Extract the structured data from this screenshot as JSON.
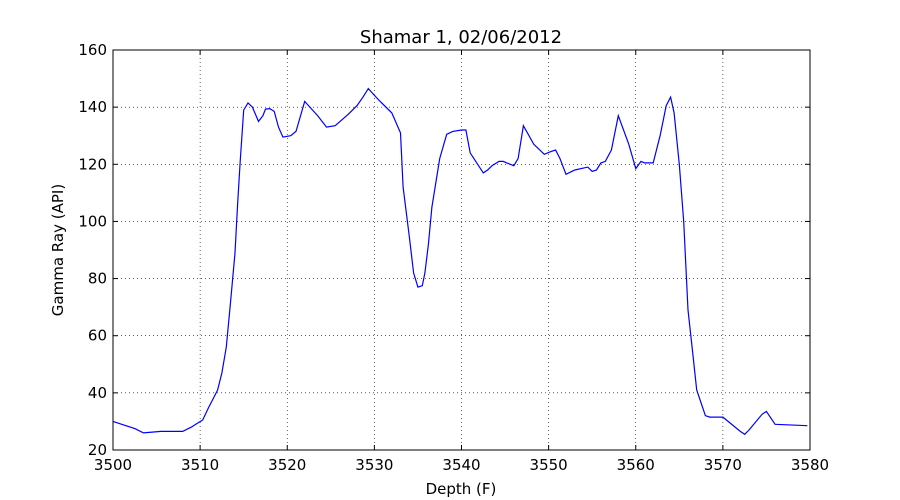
{
  "chart_data": {
    "type": "line",
    "title": "Shamar 1, 02/06/2012",
    "xlabel": "Depth (F)",
    "ylabel": "Gamma Ray (API)",
    "xlim": [
      3500,
      3580
    ],
    "ylim": [
      20,
      160
    ],
    "xticks": [
      3500,
      3510,
      3520,
      3530,
      3540,
      3550,
      3560,
      3570,
      3580
    ],
    "yticks": [
      20,
      40,
      60,
      80,
      100,
      120,
      140,
      160
    ],
    "grid": true,
    "grid_style": "dotted",
    "legend": "none",
    "series": [
      {
        "color": "#0000ff",
        "x": [
          3500,
          3502.5,
          3503.5,
          3505.5,
          3508,
          3509,
          3509.5,
          3510.3,
          3511,
          3511.5,
          3512,
          3512.5,
          3513,
          3513.5,
          3514,
          3514.3,
          3514.6,
          3515,
          3515.5,
          3516,
          3516.7,
          3517.2,
          3517.5,
          3518,
          3518.5,
          3519,
          3519.5,
          3520.4,
          3521,
          3522,
          3523.5,
          3524.5,
          3525.5,
          3527,
          3528,
          3528.7,
          3529.3,
          3530.5,
          3532,
          3533,
          3533.3,
          3534,
          3534.5,
          3535,
          3535.5,
          3535.8,
          3536.2,
          3536.6,
          3537.5,
          3538.3,
          3539,
          3540,
          3540.5,
          3541,
          3542.5,
          3543,
          3543.5,
          3544.3,
          3544.8,
          3545.2,
          3546,
          3546.5,
          3547.1,
          3548.3,
          3549.5,
          3550.3,
          3550.8,
          3551.3,
          3552,
          3553,
          3554.5,
          3555,
          3555.5,
          3556,
          3556.5,
          3557.2,
          3558,
          3559.2,
          3560,
          3560.6,
          3561,
          3562,
          3562.8,
          3563.5,
          3564,
          3564.4,
          3565,
          3565.5,
          3566,
          3566.5,
          3567,
          3568,
          3568.5,
          3570,
          3572,
          3572.5,
          3573,
          3574.5,
          3575,
          3576,
          3579.7
        ],
        "y": [
          30,
          27.5,
          26,
          26.5,
          26.5,
          28,
          29,
          30.5,
          35,
          38,
          41,
          47,
          56,
          72,
          89,
          106,
          121,
          139,
          141.5,
          140,
          135,
          137,
          139.3,
          139.5,
          138.5,
          133,
          129.5,
          130,
          131.5,
          142,
          137,
          133,
          133.5,
          137.5,
          140.5,
          143.5,
          146.5,
          142.5,
          138,
          131,
          112,
          95,
          82,
          77,
          77.5,
          82,
          92,
          105,
          122,
          130.5,
          131.5,
          132,
          132,
          124,
          117,
          118,
          119.5,
          121,
          121,
          120.5,
          119.5,
          122,
          133.5,
          127,
          123.5,
          124.5,
          125,
          122,
          116.5,
          118,
          119,
          117.5,
          118,
          120.5,
          121,
          125,
          137,
          127,
          118.5,
          121,
          120.5,
          120.5,
          130,
          140.5,
          143.5,
          138,
          120,
          100,
          69,
          55,
          41,
          32,
          31.5,
          31.5,
          26.5,
          25.5,
          27,
          32.5,
          33.5,
          29,
          28.5
        ]
      }
    ]
  }
}
